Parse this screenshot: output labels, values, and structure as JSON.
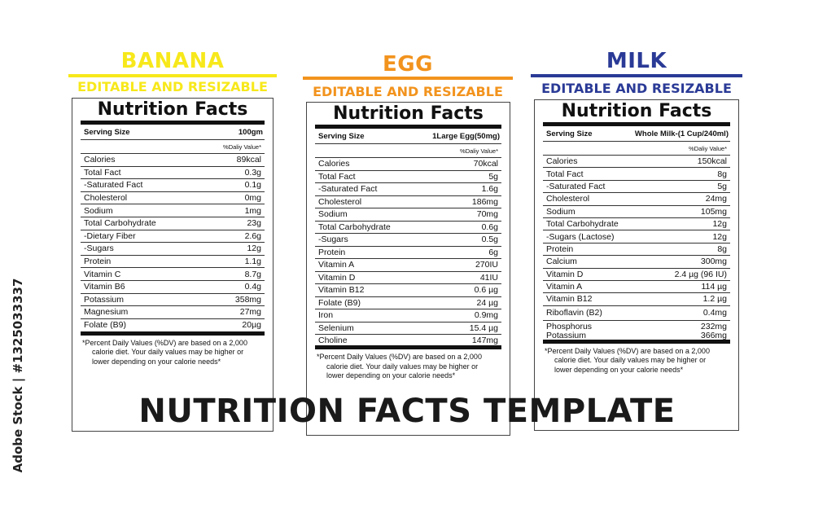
{
  "colors": {
    "banana": "#f7e81b",
    "egg": "#f2931d",
    "milk": "#2a3a96"
  },
  "panels": [
    {
      "title": "BANANA",
      "subtitle": "EDITABLE AND RESIZABLE",
      "nf_title": "Nutrition Facts",
      "serving_label": "Serving Size",
      "serving_value": "100gm",
      "dv_header": "%Daliy Value*",
      "rows": [
        {
          "name": "Calories",
          "value": "89kcal"
        },
        {
          "name": "Total Fact",
          "value": "0.3g"
        },
        {
          "name": "-Saturated Fact",
          "value": "0.1g"
        },
        {
          "name": "Cholesterol",
          "value": "0mg"
        },
        {
          "name": "Sodium",
          "value": "1mg"
        },
        {
          "name": "Total Carbohydrate",
          "value": "23g"
        },
        {
          "name": "-Dietary Fiber",
          "value": "2.6g"
        },
        {
          "name": "-Sugars",
          "value": "12g"
        },
        {
          "name": "Protein",
          "value": "1.1g"
        },
        {
          "name": "Vitamin C",
          "value": "8.7g"
        },
        {
          "name": "Vitamin B6",
          "value": "0.4g"
        },
        {
          "name": "Potassium",
          "value": "358mg"
        },
        {
          "name": "Magnesium",
          "value": "27mg"
        },
        {
          "name": "Folate (B9)",
          "value": "20µg"
        }
      ],
      "footnote": [
        "*Percent Daily Values (%DV) are based on a 2,000",
        "calorie diet. Your daily values may be higher or",
        "lower depending on your calorie needs*"
      ]
    },
    {
      "title": "EGG",
      "subtitle": "EDITABLE AND RESIZABLE",
      "nf_title": "Nutrition Facts",
      "serving_label": "Serving Size",
      "serving_value": "1Large Egg(50mg)",
      "dv_header": "%Daliy Value*",
      "rows": [
        {
          "name": "Calories",
          "value": "70kcal"
        },
        {
          "name": "Total Fact",
          "value": "5g"
        },
        {
          "name": "-Saturated Fact",
          "value": "1.6g"
        },
        {
          "name": "Cholesterol",
          "value": "186mg"
        },
        {
          "name": "Sodium",
          "value": "70mg"
        },
        {
          "name": "Total Carbohydrate",
          "value": "0.6g"
        },
        {
          "name": "-Sugars",
          "value": "0.5g"
        },
        {
          "name": "Protein",
          "value": "6g"
        },
        {
          "name": "Vitamin A",
          "value": "270IU"
        },
        {
          "name": "Vitamin D",
          "value": "41IU"
        },
        {
          "name": "Vitamin B12",
          "value": "0.6 µg"
        },
        {
          "name": "Folate (B9)",
          "value": "24 µg"
        },
        {
          "name": "Iron",
          "value": "0.9mg"
        },
        {
          "name": "Selenium",
          "value": "15.4 µg"
        },
        {
          "name": "Choline",
          "value": "147mg"
        }
      ],
      "footnote": [
        "*Percent Daily Values (%DV) are based on a 2,000",
        "calorie diet. Your daily values may be higher or",
        "lower depending on your calorie needs*"
      ]
    },
    {
      "title": "MILK",
      "subtitle": "EDITABLE AND RESIZABLE",
      "nf_title": "Nutrition Facts",
      "serving_label": "Serving Size",
      "serving_value": "Whole Milk-(1 Cup/240ml)",
      "dv_header": "%Daliy Value*",
      "rows": [
        {
          "name": "Calories",
          "value": "150kcal"
        },
        {
          "name": "Total Fact",
          "value": "8g"
        },
        {
          "name": "-Saturated Fact",
          "value": "5g"
        },
        {
          "name": "Cholesterol",
          "value": "24mg"
        },
        {
          "name": "Sodium",
          "value": "105mg"
        },
        {
          "name": "Total Carbohydrate",
          "value": "12g"
        },
        {
          "name": "-Sugars (Lactose)",
          "value": "12g"
        },
        {
          "name": "Protein",
          "value": "8g"
        },
        {
          "name": "Calcium",
          "value": "300mg"
        },
        {
          "name": "Vitamin D",
          "value": "2.4 µg (96 IU)"
        },
        {
          "name": "Vitamin A",
          "value": "114 µg"
        },
        {
          "name": "Vitamin B12",
          "value": "1.2 µg"
        },
        {
          "name": "Riboflavin (B2)",
          "value": "0.4mg"
        },
        {
          "name": "Phosphorus",
          "value": "232mg"
        },
        {
          "name": "Potassium",
          "value": "366mg"
        }
      ],
      "footnote": [
        "*Percent Daily Values (%DV) are based on a 2,000",
        "calorie diet. Your daily values may be higher or",
        "lower depending on your calorie needs*"
      ]
    }
  ],
  "main_title": "NUTRITION FACTS TEMPLATE",
  "watermark_side": "Adobe Stock | #1325033337"
}
